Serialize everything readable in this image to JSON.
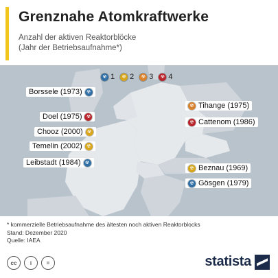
{
  "title": "Grenznahe Atomkraftwerke",
  "subtitle_line1": "Anzahl der aktiven Reaktorblöcke",
  "subtitle_line2": "(Jahr der Betriebsaufnahme*)",
  "legend": [
    {
      "label": "1",
      "color": "#2f6fa6"
    },
    {
      "label": "2",
      "color": "#d8a61b"
    },
    {
      "label": "3",
      "color": "#d9822b"
    },
    {
      "label": "4",
      "color": "#b8232a"
    }
  ],
  "chart_data": {
    "type": "map",
    "title": "Grenznahe Atomkraftwerke",
    "subtitle": "Anzahl der aktiven Reaktorblöcke (Jahr der Betriebsaufnahme*)",
    "legend_title": "",
    "plants": [
      {
        "name": "Borssele",
        "year": 1973,
        "reactors": 1
      },
      {
        "name": "Doel",
        "year": 1975,
        "reactors": 4
      },
      {
        "name": "Chooz",
        "year": 2000,
        "reactors": 2
      },
      {
        "name": "Temelin",
        "year": 2002,
        "reactors": 2
      },
      {
        "name": "Leibstadt",
        "year": 1984,
        "reactors": 1
      },
      {
        "name": "Tihange",
        "year": 1975,
        "reactors": 3
      },
      {
        "name": "Cattenom",
        "year": 1986,
        "reactors": 4
      },
      {
        "name": "Beznau",
        "year": 1969,
        "reactors": 2
      },
      {
        "name": "Gösgen",
        "year": 1979,
        "reactors": 1
      }
    ]
  },
  "labels": {
    "borssele": "Borssele (1973)",
    "doel": "Doel (1975)",
    "chooz": "Chooz (2000)",
    "temelin": "Temelin (2002)",
    "leibstadt": "Leibstadt  (1984)",
    "tihange": "Tihange (1975)",
    "cattenom": "Cattenom (1986)",
    "beznau": "Beznau (1969)",
    "goesgen": "Gösgen (1979)"
  },
  "note_line1": "* kommerzielle Betriebsaufnahme des ältesten noch aktiven Reaktorblocks",
  "note_line2": "Stand: Dezember 2020",
  "note_line3": "Quelle: IAEA",
  "footer": {
    "cc_icons": [
      "cc",
      "i",
      "="
    ],
    "brand": "statista"
  }
}
